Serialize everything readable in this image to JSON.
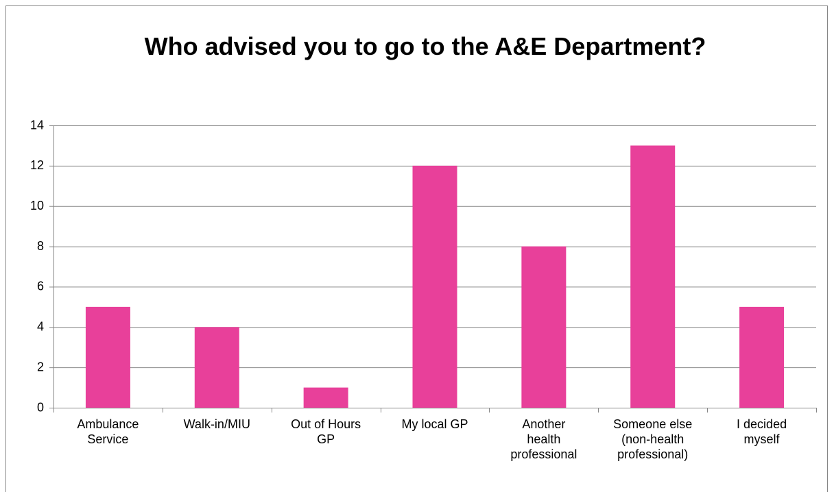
{
  "chart_data": {
    "type": "bar",
    "title": "Who advised you to go to the A&E Department?",
    "categories": [
      "Ambulance Service",
      "Walk-in/MIU",
      "Out of Hours GP",
      "My local GP",
      "Another health professional",
      "Someone else (non-health professional)",
      "I decided myself"
    ],
    "values": [
      5,
      4,
      1,
      12,
      8,
      13,
      5
    ],
    "color": "#e8409a",
    "ylim": [
      0,
      14
    ],
    "yticks": [
      0,
      2,
      4,
      6,
      8,
      10,
      12,
      14
    ],
    "grid": true
  }
}
